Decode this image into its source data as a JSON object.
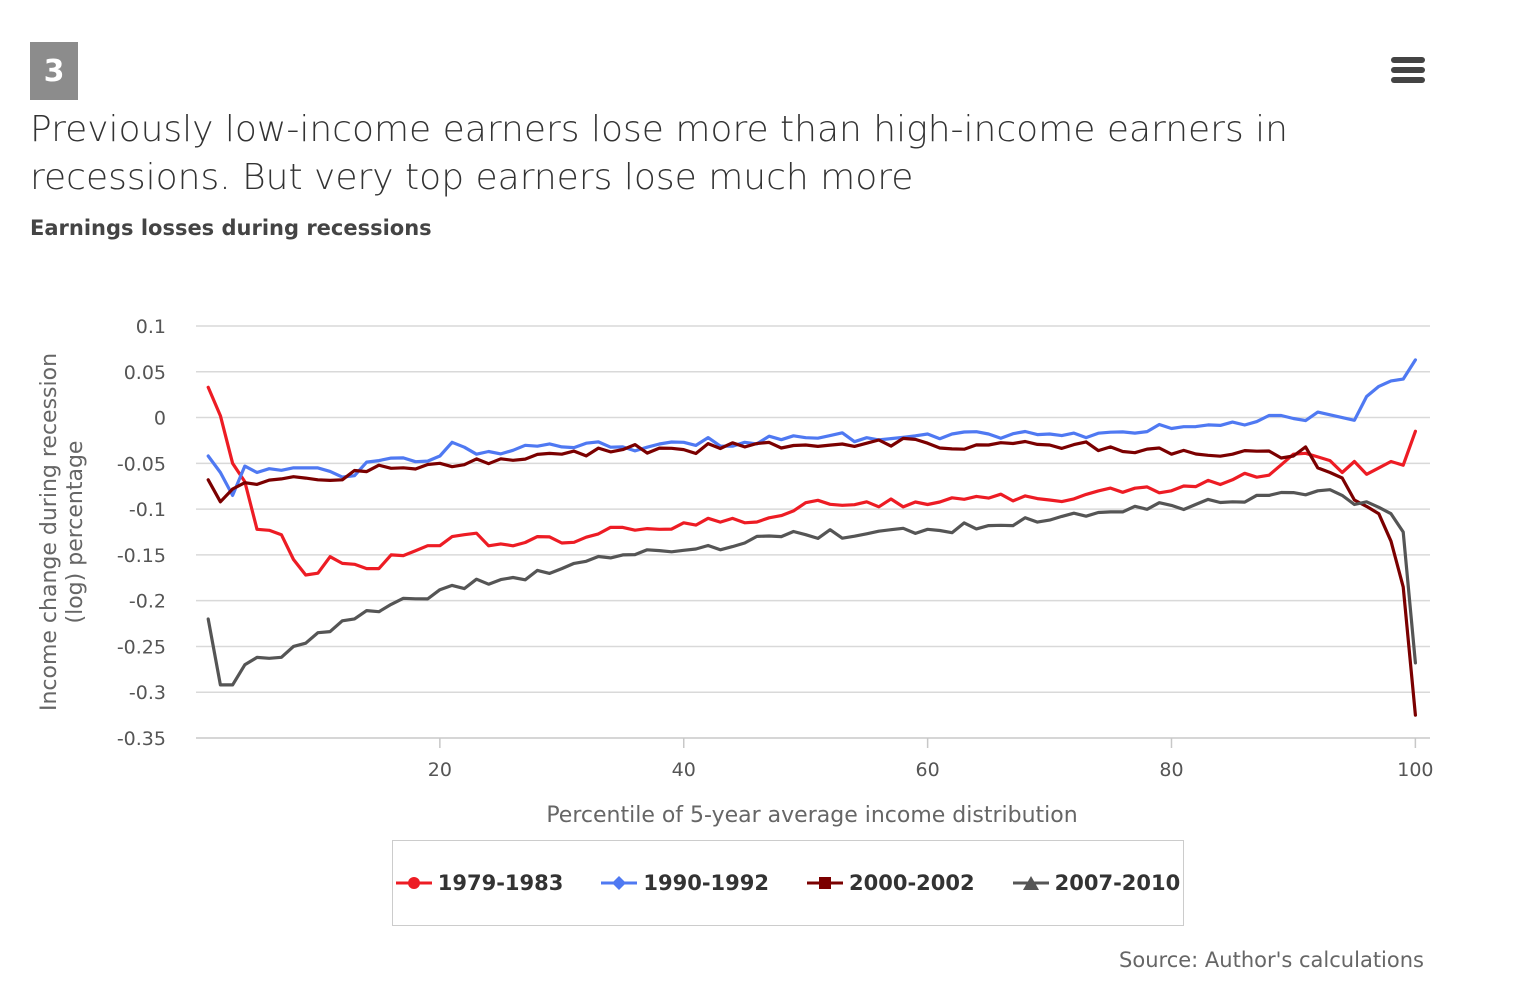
{
  "figure_number": "3",
  "title": "Previously low-income earners lose more than high-income earners in recessions. But very top earners lose much more",
  "subtitle": "Earnings losses during recessions",
  "source": "Source: Author's calculations",
  "colors": {
    "s1979": "#ed1c24",
    "s1990": "#4f79f2",
    "s2000": "#7b0000",
    "s2007": "#555555",
    "grid": "#d9d9d9",
    "axis_text": "#666666"
  },
  "chart_data": {
    "type": "line",
    "xlabel": "Percentile of 5-year average income distribution",
    "ylabel_line1": "Income change during recession",
    "ylabel_line2": "(log) percentage",
    "xlim": [
      0,
      101.2
    ],
    "ylim": [
      -0.35,
      0.1
    ],
    "x_ticks": [
      20,
      40,
      60,
      80,
      100
    ],
    "x_tick_labels": [
      "20",
      "40",
      "60",
      "80",
      "100"
    ],
    "y_ticks": [
      0.1,
      0.05,
      0,
      -0.05,
      -0.1,
      -0.15,
      -0.2,
      -0.25,
      -0.3,
      -0.35
    ],
    "y_tick_labels": [
      "0.1",
      "0.05",
      "0",
      "-0.05",
      "-0.1",
      "-0.15",
      "-0.2",
      "-0.25",
      "-0.3",
      "-0.35"
    ],
    "legend_position": "bottom",
    "series": [
      {
        "name": "1979-1983",
        "color_key": "s1979",
        "marker": "circle",
        "anchors": [
          [
            1,
            0.033
          ],
          [
            2,
            0.002
          ],
          [
            3,
            -0.05
          ],
          [
            4,
            -0.07
          ],
          [
            5,
            -0.122
          ],
          [
            7,
            -0.128
          ],
          [
            8,
            -0.155
          ],
          [
            9,
            -0.172
          ],
          [
            10,
            -0.17
          ],
          [
            11,
            -0.152
          ],
          [
            14,
            -0.165
          ],
          [
            15,
            -0.165
          ],
          [
            16,
            -0.15
          ],
          [
            20,
            -0.14
          ],
          [
            22,
            -0.128
          ],
          [
            25,
            -0.138
          ],
          [
            28,
            -0.13
          ],
          [
            30,
            -0.137
          ],
          [
            35,
            -0.12
          ],
          [
            38,
            -0.122
          ],
          [
            40,
            -0.115
          ],
          [
            42,
            -0.11
          ],
          [
            45,
            -0.115
          ],
          [
            50,
            -0.093
          ],
          [
            55,
            -0.092
          ],
          [
            60,
            -0.095
          ],
          [
            65,
            -0.088
          ],
          [
            70,
            -0.09
          ],
          [
            75,
            -0.077
          ],
          [
            80,
            -0.08
          ],
          [
            85,
            -0.068
          ],
          [
            88,
            -0.063
          ],
          [
            90,
            -0.04
          ],
          [
            92,
            -0.043
          ],
          [
            93,
            -0.047
          ],
          [
            94,
            -0.06
          ],
          [
            95,
            -0.048
          ],
          [
            96,
            -0.062
          ],
          [
            97,
            -0.055
          ],
          [
            98,
            -0.048
          ],
          [
            99,
            -0.052
          ],
          [
            100,
            -0.015
          ]
        ]
      },
      {
        "name": "1990-1992",
        "color_key": "s1990",
        "marker": "diamond",
        "anchors": [
          [
            1,
            -0.042
          ],
          [
            2,
            -0.06
          ],
          [
            3,
            -0.085
          ],
          [
            4,
            -0.053
          ],
          [
            5,
            -0.06
          ],
          [
            10,
            -0.055
          ],
          [
            12,
            -0.065
          ],
          [
            15,
            -0.047
          ],
          [
            20,
            -0.042
          ],
          [
            21,
            -0.027
          ],
          [
            23,
            -0.04
          ],
          [
            30,
            -0.032
          ],
          [
            35,
            -0.032
          ],
          [
            40,
            -0.027
          ],
          [
            45,
            -0.027
          ],
          [
            50,
            -0.022
          ],
          [
            55,
            -0.022
          ],
          [
            60,
            -0.018
          ],
          [
            65,
            -0.018
          ],
          [
            70,
            -0.018
          ],
          [
            75,
            -0.016
          ],
          [
            80,
            -0.012
          ],
          [
            85,
            -0.005
          ],
          [
            90,
            -0.001
          ],
          [
            93,
            0.003
          ],
          [
            95,
            -0.003
          ],
          [
            96,
            0.023
          ],
          [
            97,
            0.034
          ],
          [
            98,
            0.04
          ],
          [
            99,
            0.042
          ],
          [
            100,
            0.063
          ]
        ]
      },
      {
        "name": "2000-2002",
        "color_key": "s2000",
        "marker": "square",
        "anchors": [
          [
            1,
            -0.068
          ],
          [
            2,
            -0.092
          ],
          [
            3,
            -0.078
          ],
          [
            5,
            -0.073
          ],
          [
            10,
            -0.068
          ],
          [
            12,
            -0.068
          ],
          [
            15,
            -0.052
          ],
          [
            20,
            -0.05
          ],
          [
            25,
            -0.045
          ],
          [
            30,
            -0.04
          ],
          [
            35,
            -0.035
          ],
          [
            40,
            -0.035
          ],
          [
            45,
            -0.032
          ],
          [
            50,
            -0.03
          ],
          [
            55,
            -0.028
          ],
          [
            60,
            -0.028
          ],
          [
            65,
            -0.03
          ],
          [
            70,
            -0.03
          ],
          [
            75,
            -0.032
          ],
          [
            80,
            -0.04
          ],
          [
            85,
            -0.04
          ],
          [
            90,
            -0.042
          ],
          [
            91,
            -0.032
          ],
          [
            92,
            -0.055
          ],
          [
            93,
            -0.06
          ],
          [
            94,
            -0.066
          ],
          [
            95,
            -0.09
          ],
          [
            96,
            -0.097
          ],
          [
            97,
            -0.105
          ],
          [
            98,
            -0.135
          ],
          [
            99,
            -0.185
          ],
          [
            100,
            -0.325
          ]
        ]
      },
      {
        "name": "2007-2010",
        "color_key": "s2007",
        "marker": "triangle",
        "anchors": [
          [
            1,
            -0.22
          ],
          [
            2,
            -0.292
          ],
          [
            3,
            -0.292
          ],
          [
            4,
            -0.27
          ],
          [
            5,
            -0.262
          ],
          [
            6,
            -0.263
          ],
          [
            8,
            -0.25
          ],
          [
            10,
            -0.235
          ],
          [
            12,
            -0.222
          ],
          [
            15,
            -0.212
          ],
          [
            18,
            -0.198
          ],
          [
            20,
            -0.188
          ],
          [
            25,
            -0.177
          ],
          [
            30,
            -0.165
          ],
          [
            35,
            -0.15
          ],
          [
            40,
            -0.145
          ],
          [
            45,
            -0.137
          ],
          [
            50,
            -0.128
          ],
          [
            55,
            -0.127
          ],
          [
            60,
            -0.122
          ],
          [
            65,
            -0.118
          ],
          [
            70,
            -0.112
          ],
          [
            75,
            -0.103
          ],
          [
            80,
            -0.096
          ],
          [
            85,
            -0.092
          ],
          [
            88,
            -0.085
          ],
          [
            90,
            -0.082
          ],
          [
            92,
            -0.08
          ],
          [
            94,
            -0.085
          ],
          [
            95,
            -0.095
          ],
          [
            96,
            -0.092
          ],
          [
            97,
            -0.098
          ],
          [
            98,
            -0.105
          ],
          [
            99,
            -0.125
          ],
          [
            100,
            -0.268
          ]
        ]
      }
    ]
  }
}
